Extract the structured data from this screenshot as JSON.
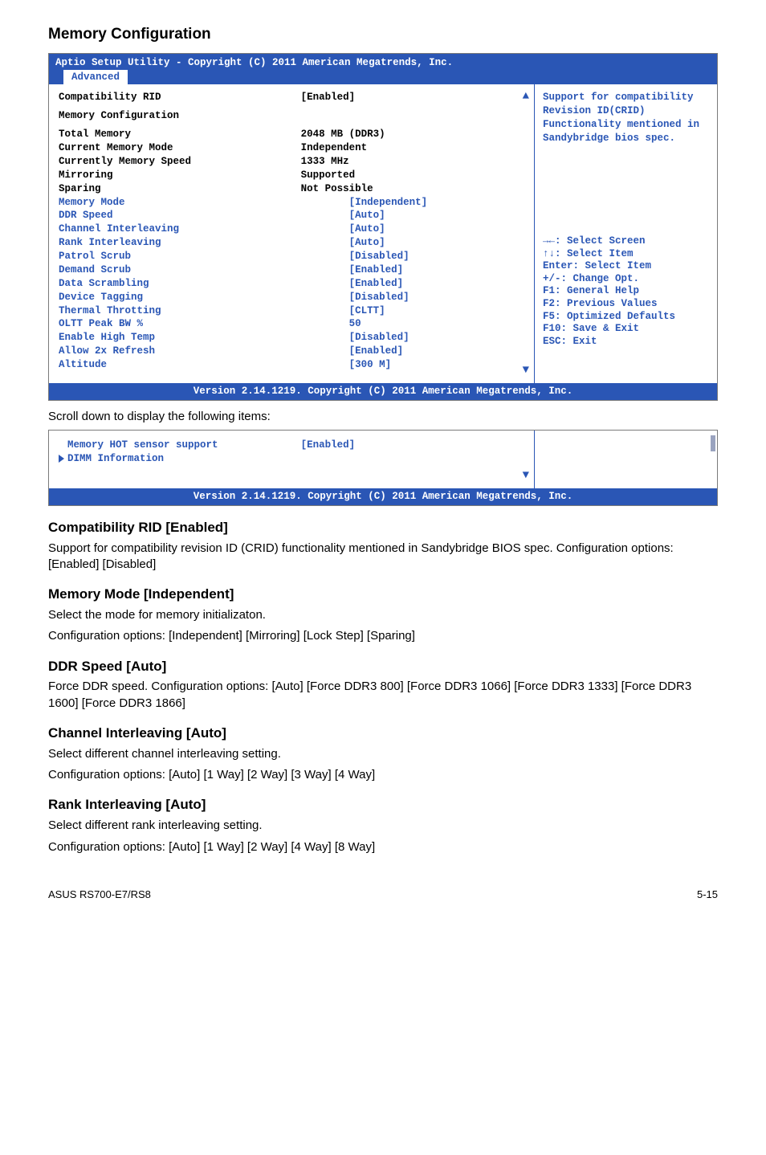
{
  "headings": {
    "memory_config": "Memory Configuration",
    "compat_rid": "Compatibility RID [Enabled]",
    "memory_mode": "Memory Mode [Independent]",
    "ddr_speed": "DDR Speed [Auto]",
    "channel_interleaving": "Channel Interleaving [Auto]",
    "rank_interleaving": "Rank Interleaving [Auto]"
  },
  "paragraphs": {
    "scroll_down": "Scroll down to display the following items:",
    "compat_rid": "Support for compatibility revision ID (CRID) functionality mentioned in Sandybridge BIOS spec. Configuration options: [Enabled] [Disabled]",
    "memory_mode_1": "Select the mode for memory initializaton.",
    "memory_mode_2": "Configuration options: [Independent] [Mirroring] [Lock Step] [Sparing]",
    "ddr_speed": "Force DDR speed. Configuration options: [Auto] [Force DDR3 800] [Force DDR3 1066] [Force DDR3 1333] [Force DDR3 1600] [Force DDR3 1866]",
    "channel_1": "Select different channel interleaving setting.",
    "channel_2": "Configuration options: [Auto] [1 Way] [2 Way] [3 Way] [4 Way]",
    "rank_1": "Select different rank interleaving setting.",
    "rank_2": "Configuration options: [Auto] [1 Way] [2 Way] [4 Way] [8 Way]"
  },
  "bios1": {
    "title_line": "Aptio Setup Utility - Copyright (C) 2011 American Megatrends, Inc.",
    "tab": "Advanced",
    "left_rows": [
      {
        "label": "Compatibility RID",
        "value": "[Enabled]",
        "label_color": "black",
        "value_color": "black",
        "indent": false
      },
      {
        "label": "Memory Configuration",
        "value": "",
        "label_color": "black",
        "value_color": "black",
        "indent": false
      },
      {
        "label": "Total Memory",
        "value": "2048 MB (DDR3)",
        "label_color": "black",
        "value_color": "black",
        "indent": false
      },
      {
        "label": "Current Memory Mode",
        "value": "Independent",
        "label_color": "black",
        "value_color": "black",
        "indent": false
      },
      {
        "label": "Currently Memory Speed",
        "value": "1333 MHz",
        "label_color": "black",
        "value_color": "black",
        "indent": false
      },
      {
        "label": "Mirroring",
        "value": "Supported",
        "label_color": "black",
        "value_color": "black",
        "indent": false
      },
      {
        "label": "Sparing",
        "value": "Not Possible",
        "label_color": "black",
        "value_color": "black",
        "indent": false
      },
      {
        "label": "Memory Mode",
        "value": "[Independent]",
        "label_color": "blue",
        "value_color": "blue",
        "indent": true
      },
      {
        "label": "DDR Speed",
        "value": "[Auto]",
        "label_color": "blue",
        "value_color": "blue",
        "indent": true
      },
      {
        "label": "Channel Interleaving",
        "value": "[Auto]",
        "label_color": "blue",
        "value_color": "blue",
        "indent": true
      },
      {
        "label": "Rank Interleaving",
        "value": "[Auto]",
        "label_color": "blue",
        "value_color": "blue",
        "indent": true
      },
      {
        "label": "Patrol Scrub",
        "value": "[Disabled]",
        "label_color": "blue",
        "value_color": "blue",
        "indent": true
      },
      {
        "label": "Demand Scrub",
        "value": "[Enabled]",
        "label_color": "blue",
        "value_color": "blue",
        "indent": true
      },
      {
        "label": "Data Scrambling",
        "value": "[Enabled]",
        "label_color": "blue",
        "value_color": "blue",
        "indent": true
      },
      {
        "label": "Device Tagging",
        "value": "[Disabled]",
        "label_color": "blue",
        "value_color": "blue",
        "indent": true
      },
      {
        "label": "Thermal Throtting",
        "value": "[CLTT]",
        "label_color": "blue",
        "value_color": "blue",
        "indent": true
      },
      {
        "label": "OLTT Peak BW %",
        "value": "50",
        "label_color": "blue",
        "value_color": "blue",
        "indent": true
      },
      {
        "label": "Enable High Temp",
        "value": "[Disabled]",
        "label_color": "blue",
        "value_color": "blue",
        "indent": true
      },
      {
        "label": "Allow 2x Refresh",
        "value": "[Enabled]",
        "label_color": "blue",
        "value_color": "blue",
        "indent": true
      },
      {
        "label": "Altitude",
        "value": "[300 M]",
        "label_color": "blue",
        "value_color": "blue",
        "indent": true
      }
    ],
    "right_help": [
      "Support for compatibility",
      "Revision ID(CRID)",
      "Functionality mentioned in",
      "Sandybridge bios spec."
    ],
    "right_keys": [
      "→←: Select Screen",
      "↑↓:  Select Item",
      "Enter: Select Item",
      "+/-: Change Opt.",
      "F1: General Help",
      "F2: Previous Values",
      "F5: Optimized Defaults",
      "F10: Save & Exit",
      "ESC: Exit"
    ],
    "footer": "Version 2.14.1219. Copyright (C) 2011 American Megatrends, Inc."
  },
  "bios2": {
    "left_rows": [
      {
        "label": "Memory HOT sensor support",
        "value": "[Enabled]",
        "label_color": "blue",
        "value_color": "blue",
        "indent": false,
        "triangle": false
      },
      {
        "label": "DIMM Information",
        "value": "",
        "label_color": "blue",
        "value_color": "blue",
        "indent": false,
        "triangle": true
      }
    ],
    "footer": "Version 2.14.1219. Copyright (C) 2011 American Megatrends, Inc."
  },
  "footer": {
    "left": "ASUS RS700-E7/RS8",
    "right": "5-15"
  },
  "colors": {
    "bios_blue": "#2a56b5",
    "bios_black": "#000000",
    "box_border": "#7a7a7a"
  }
}
